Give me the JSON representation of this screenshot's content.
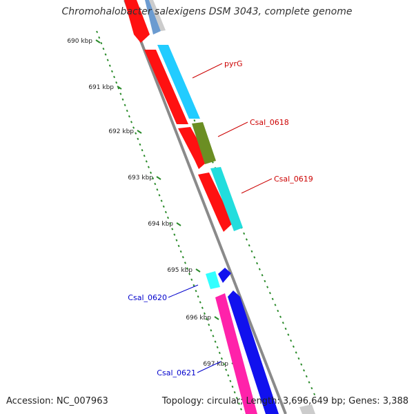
{
  "title": "Chromohalobacter salexigens DSM 3043, complete genome",
  "footer": {
    "accession": "Accession: NC_007963",
    "topology": "Topology: circular; Length: 3,696,649 bp; Genes: 3,388"
  },
  "colors": {
    "backbone": "#8a8a8a",
    "tick": "#2a8a2a",
    "red": "#ff1111",
    "sky": "#22ccff",
    "olive": "#6b8e23",
    "teal": "#22dddd",
    "cyan": "#33ffff",
    "blue": "#1111ee",
    "pink": "#ff22aa",
    "label_red": "#cc0000",
    "label_blue": "#0000cc"
  },
  "ticks": [
    "690 kbp",
    "691 kbp",
    "692 kbp",
    "693 kbp",
    "694 kbp",
    "695 kbp",
    "696 kbp",
    "697 kbp"
  ],
  "gene_labels": [
    {
      "text": "pyrG",
      "color": "label_red"
    },
    {
      "text": "Csal_0618",
      "color": "label_red"
    },
    {
      "text": "Csal_0619",
      "color": "label_red"
    },
    {
      "text": "Csal_0620",
      "color": "label_blue"
    },
    {
      "text": "Csal_0621",
      "color": "label_blue"
    }
  ]
}
